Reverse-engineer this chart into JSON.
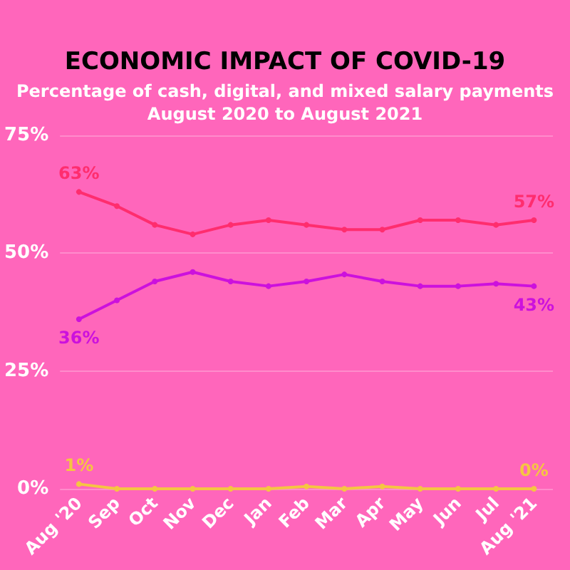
{
  "chart_data": {
    "type": "line",
    "title": "ECONOMIC IMPACT OF COVID-19",
    "subtitle": "Percentage of cash, digital, and mixed salary payments\nAugust 2020 to August 2021",
    "categories": [
      "Aug '20",
      "Sep",
      "Oct",
      "Nov",
      "Dec",
      "Jan",
      "Feb",
      "Mar",
      "Apr",
      "May",
      "Jun",
      "Jul",
      "Aug '21"
    ],
    "series": [
      {
        "color": "#ff2d6e",
        "values": [
          63,
          60,
          56,
          54,
          56,
          57,
          56,
          55,
          55,
          57,
          57,
          56,
          57
        ],
        "value_labels": [
          "63%",
          null,
          null,
          null,
          null,
          null,
          null,
          null,
          null,
          null,
          null,
          null,
          "57%"
        ]
      },
      {
        "color": "#cc11dd",
        "values": [
          36,
          40,
          44,
          46,
          44,
          43,
          44,
          45.5,
          44,
          43,
          43,
          43.5,
          43
        ],
        "value_labels": [
          "36%",
          null,
          null,
          null,
          null,
          null,
          null,
          null,
          null,
          null,
          null,
          null,
          "43%"
        ]
      },
      {
        "color": "#f5c542",
        "values": [
          1,
          0,
          0,
          0,
          0,
          0,
          0.5,
          0,
          0.5,
          0,
          0,
          0,
          0
        ],
        "value_labels": [
          "1%",
          null,
          null,
          null,
          null,
          null,
          null,
          null,
          null,
          null,
          null,
          null,
          "0%"
        ]
      }
    ],
    "ylim": [
      0,
      75
    ],
    "yticks": [
      {
        "value": 0,
        "label": "0%"
      },
      {
        "value": 25,
        "label": "25%"
      },
      {
        "value": 50,
        "label": "50%"
      },
      {
        "value": 75,
        "label": "75%"
      }
    ],
    "grid": "y",
    "marker": "circle",
    "line_style": "solid"
  }
}
